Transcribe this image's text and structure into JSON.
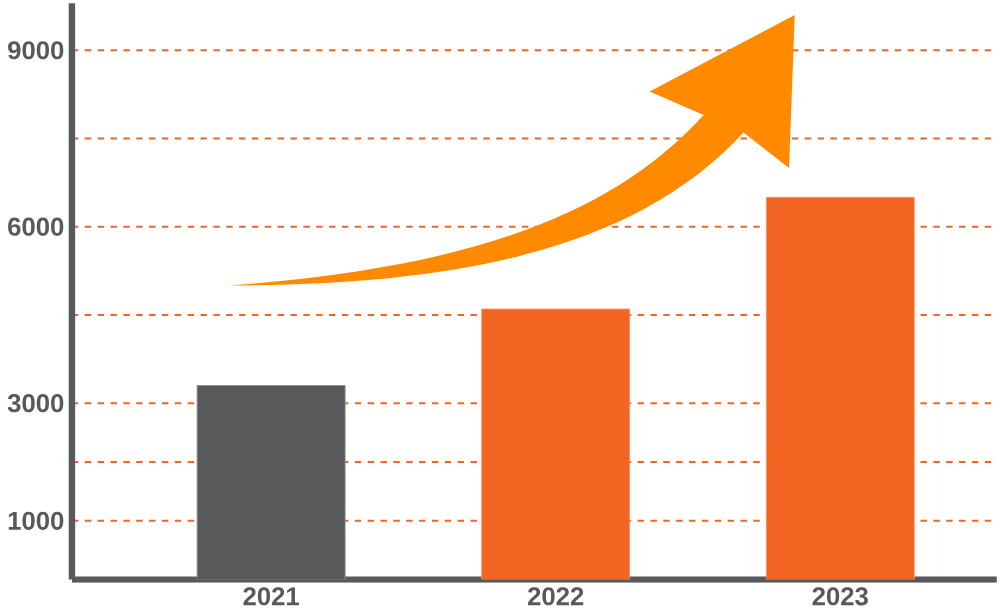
{
  "chart_data": {
    "type": "bar",
    "categories": [
      "2021",
      "2022",
      "2023"
    ],
    "values": [
      3300,
      4600,
      6500
    ],
    "colors": [
      "#58595b",
      "#f26522",
      "#f26522"
    ],
    "ylim": [
      0,
      9800
    ],
    "yticks": [
      1000,
      {
        "value": 2000,
        "label": null
      },
      3000,
      {
        "value": 4500,
        "label": null
      },
      6000,
      {
        "value": 7500,
        "label": null
      },
      9000
    ],
    "grid": "y"
  }
}
